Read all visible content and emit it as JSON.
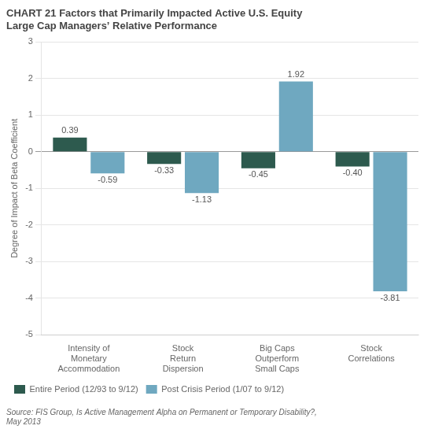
{
  "chart_data": {
    "type": "bar",
    "title": "CHART 21 Factors that Primarily Impacted Active U.S. Equity\nLarge Cap Managers’ Relative Performance",
    "annotations": [
      "Source: FIS Group, Is Active Management Alpha on Permanent or Temporary Disability?,\nMay 2013"
    ],
    "categories": [
      "Intensity of\nMonetary\nAccommodation",
      "Stock\nReturn\nDispersion",
      "Big Caps\nOutperform\nSmall Caps",
      "Stock\nCorrelations"
    ],
    "series": [
      {
        "name": "Entire Period (12/93 to 9/12)",
        "color": "#2d5a4e",
        "values": [
          0.39,
          -0.33,
          -0.45,
          -0.4
        ],
        "value_labels": [
          "0.39",
          "-0.33",
          "-0.45",
          "-0.40"
        ]
      },
      {
        "name": "Post Crisis Period (1/07 to 9/12)",
        "color": "#6fa8c0",
        "values": [
          -0.59,
          -1.13,
          1.92,
          -3.81
        ],
        "value_labels": [
          "-0.59",
          "-1.13",
          "1.92",
          "-3.81"
        ]
      }
    ],
    "ylabel": "Degree of Impact of Beta Coefficient",
    "ylim": [
      -5,
      3
    ],
    "yticks": [
      -5,
      -4,
      -3,
      -2,
      -1,
      0,
      1,
      2,
      3
    ],
    "grid": true,
    "legend": "bottom",
    "data_labels": true
  }
}
